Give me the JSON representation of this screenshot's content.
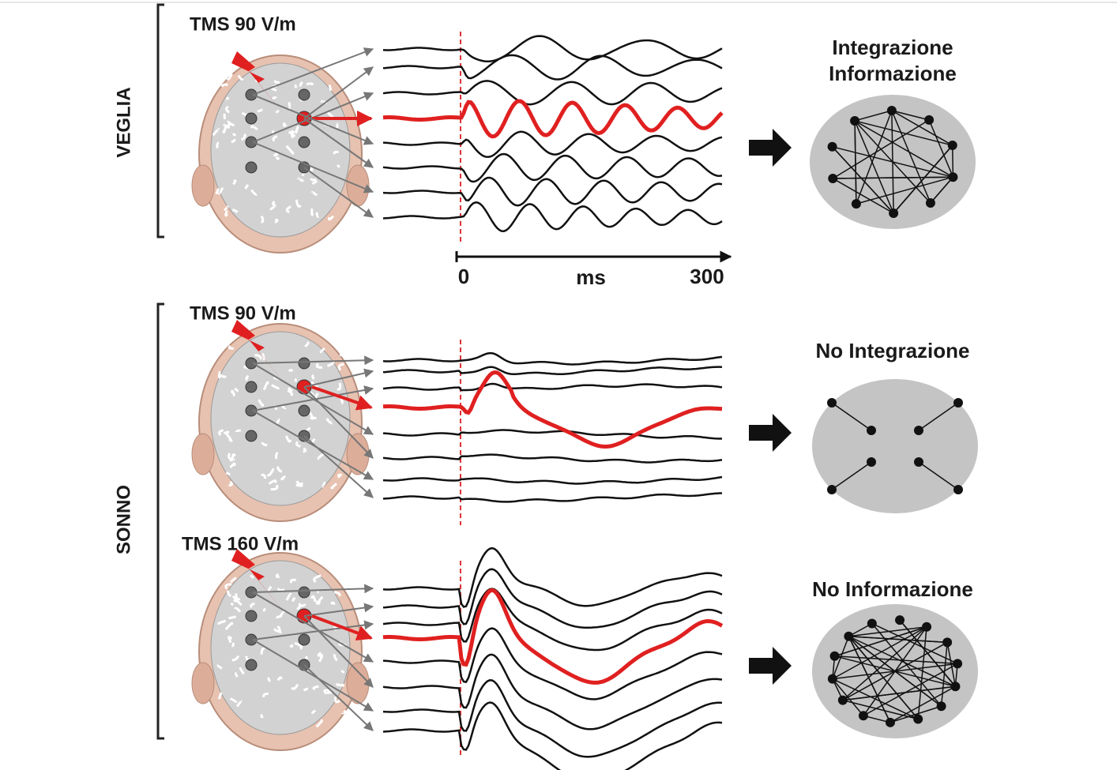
{
  "states": [
    {
      "label": "VEGLIA"
    },
    {
      "label": "SONNO"
    }
  ],
  "panels": [
    {
      "stimulus": "TMS 90 V/m",
      "outcome": [
        "Integrazione",
        "Informazione"
      ]
    },
    {
      "stimulus": "TMS 90 V/m",
      "outcome": [
        "No Integrazione"
      ]
    },
    {
      "stimulus": "TMS 160 V/m",
      "outcome": [
        "No Informazione"
      ]
    }
  ],
  "time_axis": {
    "start": "0",
    "unit": "ms",
    "end": "300"
  }
}
